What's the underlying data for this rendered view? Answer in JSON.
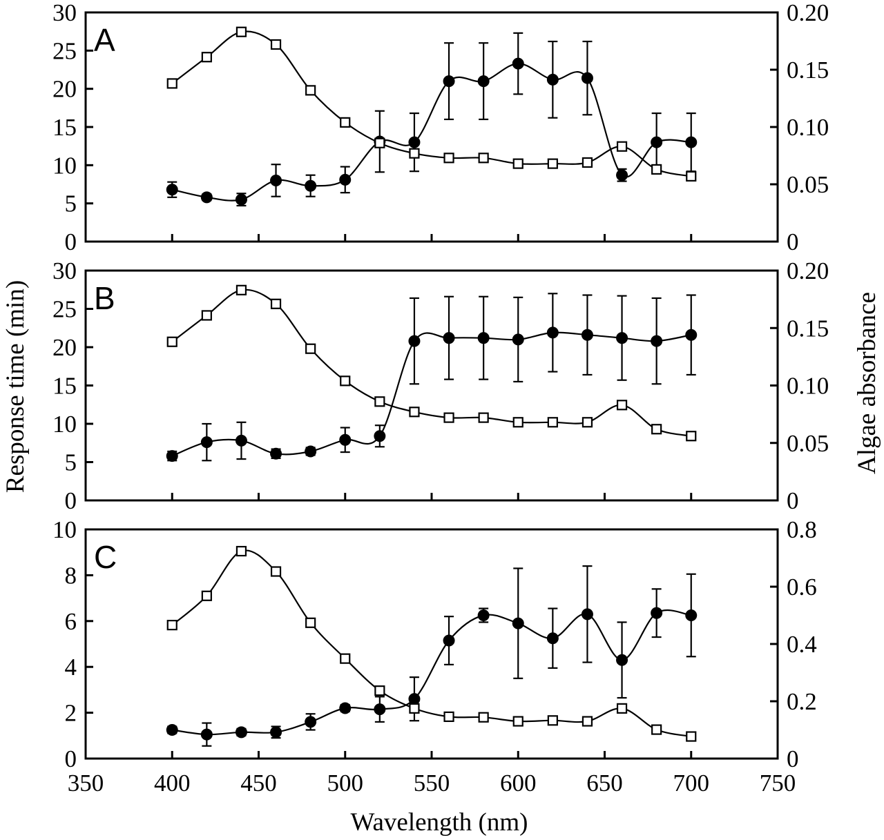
{
  "figure": {
    "ylabel_left": "Response time (min)",
    "ylabel_right": "Algae absorbance",
    "xlabel": "Wavelength (nm)"
  },
  "chart_data": [
    {
      "type": "line",
      "panel": "A",
      "x": [
        400,
        420,
        440,
        460,
        480,
        500,
        520,
        540,
        560,
        580,
        600,
        620,
        640,
        660,
        680,
        700
      ],
      "xlim": [
        350,
        750
      ],
      "xticks": [
        350,
        400,
        450,
        500,
        550,
        600,
        650,
        700,
        750
      ],
      "ylim": [
        0,
        30
      ],
      "yticks": [
        0,
        5,
        10,
        15,
        20,
        25,
        30
      ],
      "y2lim": [
        0,
        0.2
      ],
      "y2ticks": [
        "0",
        "0.05",
        "0.10",
        "0.15",
        "0.20"
      ],
      "series": [
        {
          "marker": "filled-circle",
          "axis": "left",
          "values": [
            6.8,
            5.8,
            5.5,
            8.0,
            7.3,
            8.1,
            13.1,
            13.0,
            21.0,
            21.0,
            23.3,
            21.2,
            21.4,
            8.7,
            13.0,
            13.0
          ],
          "errors": [
            1.0,
            0.4,
            0.8,
            2.1,
            1.4,
            1.7,
            4.0,
            3.8,
            5.0,
            5.0,
            4.0,
            5.0,
            4.8,
            0.8,
            3.8,
            3.8
          ]
        },
        {
          "marker": "open-square",
          "axis": "right",
          "values": [
            0.138,
            0.161,
            0.183,
            0.172,
            0.132,
            0.104,
            0.086,
            0.077,
            0.073,
            0.073,
            0.068,
            0.068,
            0.069,
            0.083,
            0.063,
            0.057
          ]
        }
      ]
    },
    {
      "type": "line",
      "panel": "B",
      "x": [
        400,
        420,
        440,
        460,
        480,
        500,
        520,
        540,
        560,
        580,
        600,
        620,
        640,
        660,
        680,
        700
      ],
      "xlim": [
        350,
        750
      ],
      "xticks": [
        350,
        400,
        450,
        500,
        550,
        600,
        650,
        700,
        750
      ],
      "ylim": [
        0,
        30
      ],
      "yticks": [
        0,
        5,
        10,
        15,
        20,
        25,
        30
      ],
      "y2lim": [
        0,
        0.2
      ],
      "y2ticks": [
        "0",
        "0.05",
        "0.10",
        "0.15",
        "0.20"
      ],
      "series": [
        {
          "marker": "filled-circle",
          "axis": "left",
          "values": [
            5.8,
            7.6,
            7.8,
            6.1,
            6.4,
            7.9,
            8.4,
            20.8,
            21.2,
            21.2,
            21.0,
            21.9,
            21.6,
            21.2,
            20.8,
            21.6
          ],
          "errors": [
            0.6,
            2.4,
            2.4,
            0.6,
            0.5,
            1.6,
            1.4,
            5.6,
            5.4,
            5.4,
            5.5,
            5.1,
            5.2,
            5.5,
            5.6,
            5.2
          ]
        },
        {
          "marker": "open-square",
          "axis": "right",
          "values": [
            0.138,
            0.161,
            0.183,
            0.171,
            0.132,
            0.104,
            0.086,
            0.077,
            0.072,
            0.072,
            0.068,
            0.068,
            0.068,
            0.083,
            0.062,
            0.056
          ]
        }
      ]
    },
    {
      "type": "line",
      "panel": "C",
      "x": [
        400,
        420,
        440,
        460,
        480,
        500,
        520,
        540,
        560,
        580,
        600,
        620,
        640,
        660,
        680,
        700
      ],
      "xlim": [
        350,
        750
      ],
      "xticks": [
        350,
        400,
        450,
        500,
        550,
        600,
        650,
        700,
        750
      ],
      "ylim": [
        0,
        10
      ],
      "yticks": [
        0,
        2,
        4,
        6,
        8,
        10
      ],
      "y2lim": [
        0,
        0.8
      ],
      "y2ticks": [
        "0",
        "0.2",
        "0.4",
        "0.6",
        "0.8"
      ],
      "series": [
        {
          "marker": "filled-circle",
          "axis": "left",
          "values": [
            1.25,
            1.05,
            1.15,
            1.15,
            1.6,
            2.2,
            2.15,
            2.6,
            5.15,
            6.25,
            5.9,
            5.25,
            6.3,
            4.3,
            6.35,
            6.25
          ],
          "errors": [
            0.15,
            0.5,
            0.15,
            0.25,
            0.35,
            0.15,
            0.55,
            0.95,
            1.05,
            0.3,
            2.4,
            1.3,
            2.1,
            1.65,
            1.05,
            1.8
          ]
        },
        {
          "marker": "open-square",
          "axis": "right",
          "values": [
            0.466,
            0.568,
            0.724,
            0.653,
            0.474,
            0.349,
            0.237,
            0.175,
            0.146,
            0.144,
            0.13,
            0.133,
            0.13,
            0.175,
            0.101,
            0.077
          ]
        }
      ]
    }
  ]
}
